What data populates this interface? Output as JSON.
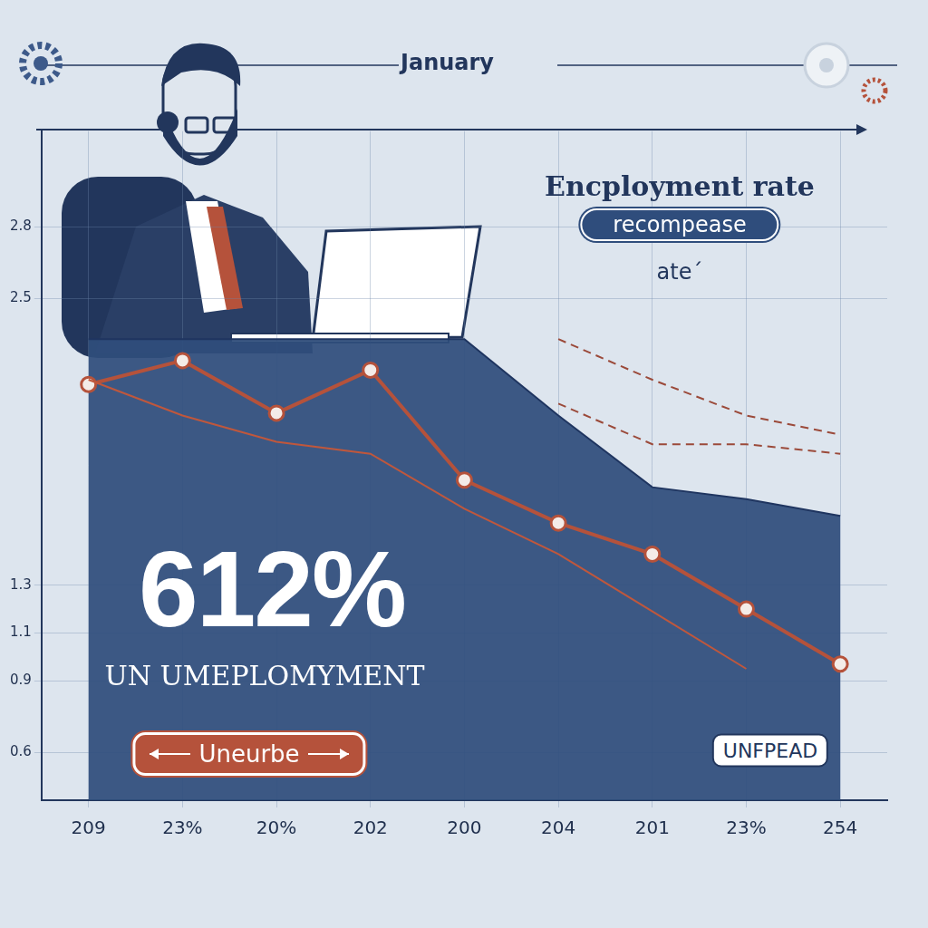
{
  "chart_data": {
    "type": "line",
    "title": "January",
    "annotations": [
      "Encployment rate",
      "recompease",
      "ateˊ",
      "612%",
      "UN UMEPLOMYMENT",
      "Uneurbe",
      "UNFPEAD"
    ],
    "categories": [
      "209",
      "23%",
      "20%",
      "202",
      "200",
      "204",
      "201",
      "23%",
      "254"
    ],
    "series": [
      {
        "type": "area",
        "color": "#2f4d7c",
        "values": [
          2.33,
          2.33,
          2.33,
          2.33,
          2.33,
          2.01,
          1.71,
          1.66,
          1.59
        ]
      },
      {
        "color": "#c0573c",
        "line_style": "solid",
        "values": [
          2.16,
          2.01,
          1.9,
          1.85,
          1.62,
          1.43,
          1.19,
          0.95,
          null
        ]
      },
      {
        "color": "#b5523b",
        "marker": "circle",
        "line_style": "solid",
        "values": [
          2.14,
          2.24,
          2.02,
          2.2,
          1.74,
          1.56,
          1.43,
          1.2,
          0.97
        ]
      },
      {
        "color": "#9b4a3a",
        "line_style": "dashed",
        "values": [
          null,
          null,
          null,
          null,
          null,
          2.33,
          2.16,
          2.01,
          1.93
        ]
      },
      {
        "color": "#9b4a3a",
        "line_style": "dashed",
        "values": [
          null,
          null,
          null,
          null,
          null,
          2.06,
          1.89,
          1.89,
          1.85
        ]
      }
    ],
    "ylim": [
      0.4,
      3.2
    ],
    "yticks": [
      0.6,
      0.9,
      1.1,
      1.3,
      2.5,
      2.8
    ],
    "grid": true
  }
}
